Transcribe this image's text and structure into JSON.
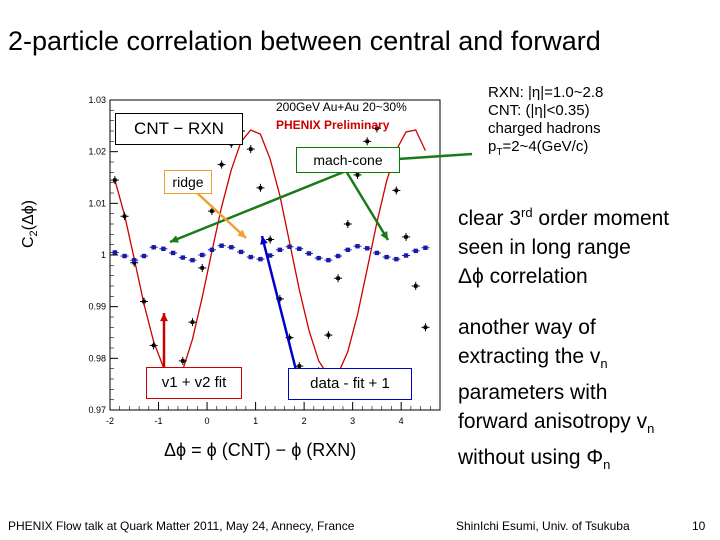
{
  "slide": {
    "title": "2-particle correlation between central and forward",
    "page_number": "10",
    "footer_left": "PHENIX Flow talk at Quark Matter 2011, May 24, Annecy, France",
    "footer_right": "ShinIchi Esumi, Univ. of Tsukuba"
  },
  "plot": {
    "ylabel": "C2(Δϕ)",
    "ylabel_main": "C",
    "ylabel_sub": "2",
    "ylabel_tail": "(Δϕ)",
    "xlabel": "Δϕ = ϕ (CNT) − ϕ (RXN)",
    "legend_box": "CNT − RXN",
    "header_line1": "200GeV Au+Au 20~30%",
    "header_line2": "PHENIX Preliminary",
    "mach_cone_label": "mach-cone",
    "ridge_label": "ridge",
    "fit_label": "v1 + v2 fit",
    "data_label": "data - fit + 1"
  },
  "chart_data": {
    "type": "scatter",
    "title": "",
    "xlabel": "Δϕ = ϕ (CNT) − ϕ (RXN)",
    "ylabel": "C2(Δϕ)",
    "xlim": [
      -2,
      4.8
    ],
    "ylim": [
      0.97,
      1.03
    ],
    "x_ticks": [
      "-2",
      "-1",
      "0",
      "1",
      "2",
      "3",
      "4"
    ],
    "y_ticks": [
      "0.97",
      "0.98",
      "0.99",
      "1",
      "1.01",
      "1.02",
      "1.03"
    ],
    "series": [
      {
        "name": "data (CNT - RXN)",
        "color": "#000000",
        "x": [
          -1.9,
          -1.7,
          -1.5,
          -1.3,
          -1.1,
          -0.9,
          -0.7,
          -0.5,
          -0.3,
          -0.1,
          0.1,
          0.3,
          0.5,
          0.7,
          0.9,
          1.1,
          1.3,
          1.5,
          1.7,
          1.9,
          2.1,
          2.3,
          2.5,
          2.7,
          2.9,
          3.1,
          3.3,
          3.5,
          3.7,
          3.9,
          4.1,
          4.3,
          4.5
        ],
        "y": [
          1.0145,
          1.0075,
          0.9985,
          0.991,
          0.9825,
          0.978,
          0.9755,
          0.9795,
          0.987,
          0.9975,
          1.0085,
          1.0175,
          1.0215,
          1.024,
          1.0205,
          1.013,
          1.003,
          0.9915,
          0.984,
          0.9785,
          0.9755,
          0.9775,
          0.9845,
          0.9955,
          1.006,
          1.0155,
          1.022,
          1.0245,
          1.0195,
          1.0125,
          1.0035,
          0.994,
          0.986
        ]
      },
      {
        "name": "v1 + v2 fit",
        "color": "#cc0000",
        "x": [
          -1.9,
          -1.7,
          -1.5,
          -1.3,
          -1.1,
          -0.9,
          -0.7,
          -0.5,
          -0.3,
          -0.1,
          0.1,
          0.3,
          0.5,
          0.7,
          0.9,
          1.1,
          1.3,
          1.5,
          1.7,
          1.9,
          2.1,
          2.3,
          2.5,
          2.7,
          2.9,
          3.1,
          3.3,
          3.5,
          3.7,
          3.9,
          4.1,
          4.3,
          4.5
        ],
        "y": [
          1.0145,
          1.0077,
          0.9992,
          0.9905,
          0.9832,
          0.9783,
          0.9765,
          0.9778,
          0.9837,
          0.9918,
          1.0007,
          1.0093,
          1.0165,
          1.0219,
          1.0242,
          1.0234,
          1.0186,
          1.0115,
          1.0024,
          0.9933,
          0.9854,
          0.9795,
          0.9766,
          0.977,
          0.9813,
          0.9884,
          0.9973,
          1.0063,
          1.0143,
          1.0203,
          1.0238,
          1.0242,
          1.0202
        ]
      },
      {
        "name": "data - fit + 1",
        "color": "#1a1aaa",
        "x": [
          -1.9,
          -1.7,
          -1.5,
          -1.3,
          -1.1,
          -0.9,
          -0.7,
          -0.5,
          -0.3,
          -0.1,
          0.1,
          0.3,
          0.5,
          0.7,
          0.9,
          1.1,
          1.3,
          1.5,
          1.7,
          1.9,
          2.1,
          2.3,
          2.5,
          2.7,
          2.9,
          3.1,
          3.3,
          3.5,
          3.7,
          3.9,
          4.1,
          4.3,
          4.5
        ],
        "y": [
          1.0005,
          0.9998,
          0.999,
          0.9998,
          1.0015,
          1.0012,
          1.0004,
          0.9995,
          0.999,
          1.0,
          1.001,
          1.0018,
          1.0015,
          1.0006,
          0.9996,
          0.9992,
          0.9999,
          1.001,
          1.0016,
          1.0012,
          1.0003,
          0.9994,
          0.999,
          0.9998,
          1.001,
          1.0017,
          1.0013,
          1.0004,
          0.9996,
          0.9992,
          0.9999,
          1.0008,
          1.0014
        ]
      }
    ]
  },
  "right_panel": {
    "rxn_line": "RXN: |η|=1.0~2.8",
    "cnt_line": "CNT: (|η|<0.35)",
    "hadrons_line": "charged hadrons",
    "pt_line": "pT=2~4(GeV/c)",
    "pt_main": "p",
    "pt_sub": "T",
    "pt_rest": "=2~4(GeV/c)",
    "moment_text": "clear 3rd order moment seen in long range Δϕ correlation",
    "moment_l1a": "clear 3",
    "moment_sup": "rd",
    "moment_l1b": " order moment",
    "moment_l2": "seen in long range",
    "moment_l3": "Δϕ  correlation",
    "vn_text": "another way of extracting the vn parameters with forward anisotropy vn without using Φn",
    "vn_l1": "another way of",
    "vn_l2a": "extracting the v",
    "vn_l2s": "n",
    "vn_l3": "parameters with",
    "vn_l4a": "forward anisotropy v",
    "vn_l4s": "n",
    "vn_l5a": "without using Φ",
    "vn_l5s": "n"
  },
  "colors": {
    "data": "#000000",
    "fit": "#cc0000",
    "residual": "#1a1aaa",
    "arrow_ridge": "#f0a030",
    "arrow_mach": "#1a7a1a",
    "arrow_fit": "#cc0000",
    "arrow_data": "#0000cc",
    "header_red": "#cc0000"
  }
}
